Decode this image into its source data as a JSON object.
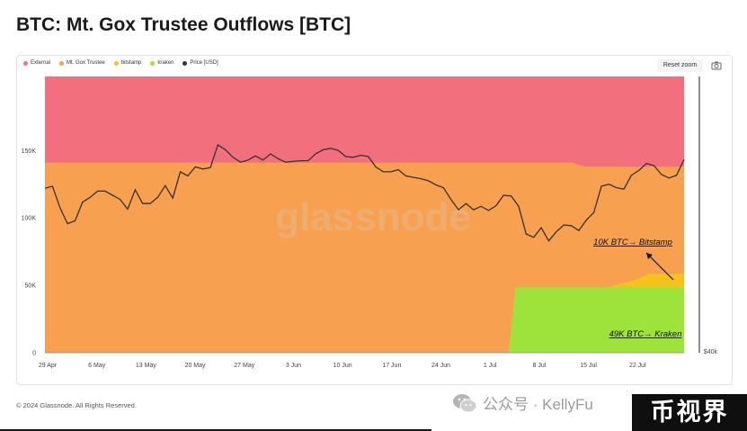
{
  "title": "BTC: Mt. Gox Trustee Outflows [BTC]",
  "toolbar": {
    "reset_zoom": "Reset zoom",
    "camera_icon": "camera-icon"
  },
  "legend": [
    {
      "label": "External",
      "color": "#f2707e"
    },
    {
      "label": "Mt. Gox Trustee",
      "color": "#f7a050"
    },
    {
      "label": "bitstamp",
      "color": "#f5c21a"
    },
    {
      "label": "kraken",
      "color": "#9ee23c"
    },
    {
      "label": "Price [USD]",
      "color": "#333333"
    }
  ],
  "watermark": "glassnode",
  "footer": "© 2024 Glassnode. All Rights Reserved.",
  "wechat_text": "公众号 · KellyFu",
  "badge_text": "币视界",
  "chart_data": {
    "type": "area",
    "x_dates": [
      "2024-04-29",
      "2024-07-28"
    ],
    "xticks": [
      "29 Apr",
      "6 May",
      "13 May",
      "20 May",
      "27 May",
      "3 Jun",
      "10 Jun",
      "17 Jun",
      "24 Jun",
      "1 Jul",
      "8 Jul",
      "15 Jul",
      "22 Jul"
    ],
    "yticks": [
      "0",
      "50K",
      "100K",
      "150K"
    ],
    "ylim": [
      0,
      205000
    ],
    "right_axis_label": "$40k",
    "series": [
      {
        "name": "External",
        "color": "#f2707e",
        "total": 205000
      },
      {
        "name": "Mt. Gox Trustee",
        "color": "#f7a050",
        "days": [
          0,
          3,
          75,
          77,
          91
        ],
        "values": [
          141000,
          141000,
          141000,
          138000,
          138000
        ]
      },
      {
        "name": "kraken",
        "color": "#9ee23c",
        "days": [
          0,
          66,
          67,
          80,
          91
        ],
        "values": [
          0,
          0,
          48500,
          48500,
          48500
        ]
      },
      {
        "name": "bitstamp",
        "color": "#f5c21a",
        "days": [
          0,
          80,
          84,
          86,
          91
        ],
        "values": [
          0,
          0,
          5500,
          10000,
          10000
        ]
      }
    ],
    "price": {
      "name": "Price [USD]",
      "color": "#333333",
      "ylim_usd": [
        40000,
        80000
      ],
      "values": [
        63800,
        64100,
        61000,
        58700,
        59100,
        61800,
        62500,
        63400,
        63400,
        62800,
        62200,
        60800,
        63600,
        61600,
        61600,
        62500,
        64200,
        62400,
        66200,
        65600,
        66900,
        66600,
        66800,
        70100,
        69400,
        68300,
        67600,
        67900,
        68500,
        67900,
        68800,
        68100,
        67600,
        67700,
        67800,
        67800,
        68800,
        69400,
        69600,
        69300,
        68400,
        68300,
        68600,
        68400,
        66900,
        66200,
        66200,
        66500,
        65600,
        65400,
        65200,
        64900,
        64300,
        63900,
        62200,
        60700,
        61600,
        60700,
        61200,
        60600,
        61300,
        62800,
        62700,
        61200,
        57200,
        56700,
        58100,
        56200,
        57500,
        58500,
        58400,
        57700,
        59200,
        60300,
        64100,
        64400,
        63900,
        63700,
        65700,
        66400,
        67400,
        67100,
        65800,
        65300,
        65700,
        68000
      ]
    },
    "annotations": [
      {
        "text": "10K BTC→ Bitstamp"
      },
      {
        "text": "49K BTC→ Kraken"
      }
    ]
  }
}
